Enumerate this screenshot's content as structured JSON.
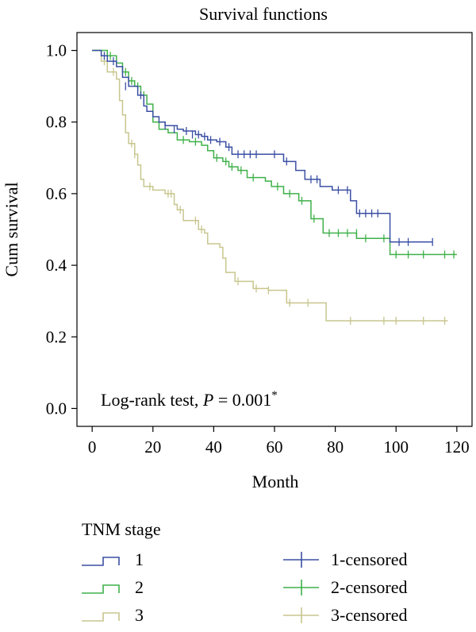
{
  "chart_data": {
    "type": "line",
    "title": "Survival functions",
    "xlabel": "Month",
    "ylabel": "Cum survival",
    "xlim": [
      -5,
      125
    ],
    "ylim": [
      -0.05,
      1.05
    ],
    "xticks": [
      0,
      20,
      40,
      60,
      80,
      100,
      120
    ],
    "yticks": [
      0.0,
      0.2,
      0.4,
      0.6,
      0.8,
      1.0
    ],
    "xtick_labels": [
      "0",
      "20",
      "40",
      "60",
      "80",
      "100",
      "120"
    ],
    "ytick_labels": [
      "0.0",
      "0.2",
      "0.4",
      "0.6",
      "0.8",
      "1.0"
    ],
    "grid": false,
    "annotation": {
      "prefix": "Log-rank test, ",
      "p_symbol": "P",
      "equals": " = ",
      "value": "0.001",
      "mark": "*"
    },
    "legend": {
      "title": "TNM stage",
      "placement": "bottom",
      "entries": [
        "1",
        "2",
        "3",
        "1-censored",
        "2-censored",
        "3-censored"
      ]
    },
    "series": [
      {
        "name": "1",
        "color": "#3b4fa4",
        "steps": [
          [
            0,
            1.0
          ],
          [
            3,
            0.985
          ],
          [
            5,
            0.97
          ],
          [
            8,
            0.955
          ],
          [
            10,
            0.925
          ],
          [
            12,
            0.9
          ],
          [
            15,
            0.875
          ],
          [
            17,
            0.845
          ],
          [
            18,
            0.83
          ],
          [
            20,
            0.815
          ],
          [
            22,
            0.8
          ],
          [
            24,
            0.79
          ],
          [
            28,
            0.78
          ],
          [
            30,
            0.775
          ],
          [
            34,
            0.765
          ],
          [
            36,
            0.76
          ],
          [
            38,
            0.75
          ],
          [
            41,
            0.745
          ],
          [
            44,
            0.73
          ],
          [
            46,
            0.71
          ],
          [
            63,
            0.69
          ],
          [
            67,
            0.665
          ],
          [
            70,
            0.64
          ],
          [
            75,
            0.62
          ],
          [
            79,
            0.61
          ],
          [
            85,
            0.58
          ],
          [
            87,
            0.545
          ],
          [
            98,
            0.465
          ],
          [
            112,
            0.465
          ]
        ],
        "censored": [
          [
            4,
            0.985
          ],
          [
            7,
            0.97
          ],
          [
            11,
            0.9
          ],
          [
            16,
            0.875
          ],
          [
            24,
            0.79
          ],
          [
            27,
            0.78
          ],
          [
            31,
            0.775
          ],
          [
            33,
            0.765
          ],
          [
            35,
            0.765
          ],
          [
            37,
            0.76
          ],
          [
            39,
            0.75
          ],
          [
            42,
            0.745
          ],
          [
            45,
            0.73
          ],
          [
            48,
            0.71
          ],
          [
            50,
            0.71
          ],
          [
            52,
            0.71
          ],
          [
            54,
            0.71
          ],
          [
            60,
            0.71
          ],
          [
            64,
            0.69
          ],
          [
            72,
            0.64
          ],
          [
            74,
            0.64
          ],
          [
            81,
            0.61
          ],
          [
            84,
            0.61
          ],
          [
            88,
            0.545
          ],
          [
            90,
            0.545
          ],
          [
            92,
            0.545
          ],
          [
            94,
            0.545
          ],
          [
            101,
            0.465
          ],
          [
            104,
            0.465
          ],
          [
            112,
            0.465
          ]
        ]
      },
      {
        "name": "2",
        "color": "#3fb14a",
        "steps": [
          [
            0,
            1.0
          ],
          [
            5,
            0.985
          ],
          [
            8,
            0.965
          ],
          [
            10,
            0.94
          ],
          [
            12,
            0.915
          ],
          [
            14,
            0.9
          ],
          [
            16,
            0.875
          ],
          [
            18,
            0.85
          ],
          [
            20,
            0.8
          ],
          [
            22,
            0.78
          ],
          [
            25,
            0.77
          ],
          [
            28,
            0.75
          ],
          [
            32,
            0.745
          ],
          [
            36,
            0.735
          ],
          [
            38,
            0.72
          ],
          [
            40,
            0.7
          ],
          [
            43,
            0.69
          ],
          [
            45,
            0.675
          ],
          [
            48,
            0.665
          ],
          [
            51,
            0.645
          ],
          [
            57,
            0.635
          ],
          [
            59,
            0.62
          ],
          [
            63,
            0.6
          ],
          [
            68,
            0.58
          ],
          [
            72,
            0.53
          ],
          [
            76,
            0.49
          ],
          [
            87,
            0.475
          ],
          [
            98,
            0.43
          ],
          [
            120,
            0.43
          ]
        ],
        "censored": [
          [
            6,
            0.985
          ],
          [
            11,
            0.94
          ],
          [
            13,
            0.915
          ],
          [
            15,
            0.9
          ],
          [
            17,
            0.875
          ],
          [
            30,
            0.75
          ],
          [
            34,
            0.745
          ],
          [
            41,
            0.7
          ],
          [
            44,
            0.69
          ],
          [
            46,
            0.675
          ],
          [
            49,
            0.665
          ],
          [
            53,
            0.645
          ],
          [
            61,
            0.62
          ],
          [
            65,
            0.6
          ],
          [
            69,
            0.58
          ],
          [
            73,
            0.53
          ],
          [
            78,
            0.49
          ],
          [
            81,
            0.49
          ],
          [
            84,
            0.49
          ],
          [
            87,
            0.49
          ],
          [
            90,
            0.475
          ],
          [
            96,
            0.475
          ],
          [
            100,
            0.43
          ],
          [
            104,
            0.43
          ],
          [
            109,
            0.43
          ],
          [
            116,
            0.43
          ],
          [
            119,
            0.43
          ]
        ]
      },
      {
        "name": "3",
        "color": "#c8c68e",
        "steps": [
          [
            0,
            1.0
          ],
          [
            3,
            0.97
          ],
          [
            5,
            0.94
          ],
          [
            8,
            0.92
          ],
          [
            9,
            0.86
          ],
          [
            10,
            0.82
          ],
          [
            11,
            0.77
          ],
          [
            12,
            0.74
          ],
          [
            14,
            0.71
          ],
          [
            15,
            0.68
          ],
          [
            16,
            0.64
          ],
          [
            17,
            0.62
          ],
          [
            20,
            0.61
          ],
          [
            24,
            0.6
          ],
          [
            27,
            0.57
          ],
          [
            28,
            0.555
          ],
          [
            30,
            0.525
          ],
          [
            35,
            0.5
          ],
          [
            37,
            0.49
          ],
          [
            38,
            0.46
          ],
          [
            42,
            0.45
          ],
          [
            43,
            0.42
          ],
          [
            44,
            0.38
          ],
          [
            47,
            0.355
          ],
          [
            53,
            0.335
          ],
          [
            58,
            0.33
          ],
          [
            64,
            0.295
          ],
          [
            77,
            0.245
          ],
          [
            117,
            0.245
          ]
        ],
        "censored": [
          [
            4,
            0.97
          ],
          [
            7,
            0.94
          ],
          [
            13,
            0.74
          ],
          [
            14,
            0.71
          ],
          [
            19,
            0.62
          ],
          [
            25,
            0.6
          ],
          [
            26,
            0.6
          ],
          [
            29,
            0.555
          ],
          [
            34,
            0.525
          ],
          [
            36,
            0.5
          ],
          [
            48,
            0.355
          ],
          [
            54,
            0.335
          ],
          [
            58,
            0.33
          ],
          [
            65,
            0.295
          ],
          [
            71,
            0.295
          ],
          [
            85,
            0.245
          ],
          [
            96,
            0.245
          ],
          [
            100,
            0.245
          ],
          [
            109,
            0.245
          ],
          [
            116,
            0.245
          ]
        ]
      }
    ]
  }
}
